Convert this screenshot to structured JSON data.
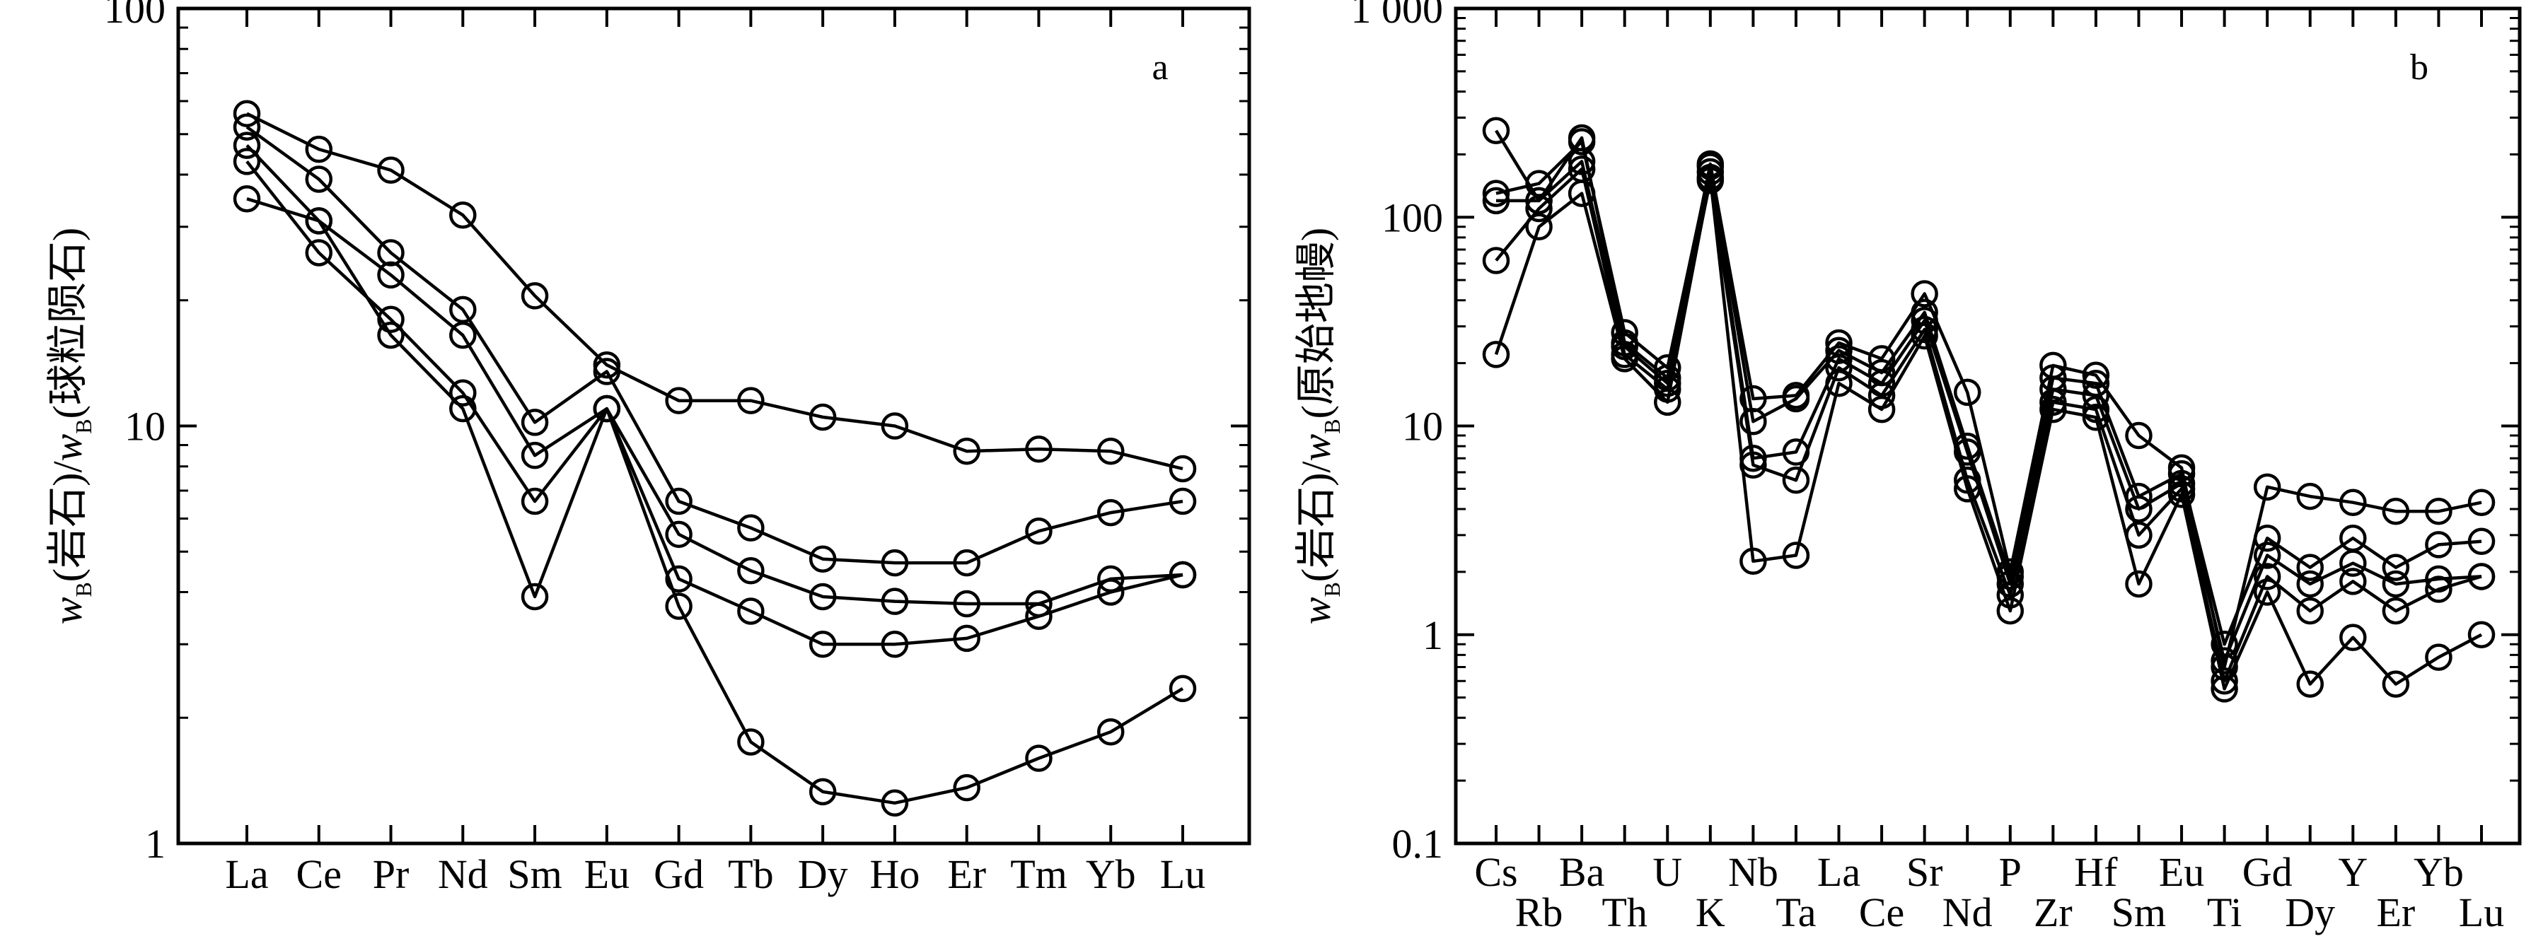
{
  "chart_data": [
    {
      "type": "line",
      "panel_label": "a",
      "yscale": "log",
      "ylim": [
        1,
        100
      ],
      "ytick_labels": [
        "1",
        "10",
        "100"
      ],
      "ylabel": {
        "w1": "w",
        "b1": "B",
        "mid": "(岩石)/",
        "w2": "w",
        "b2": "B",
        "end": "(球粒陨石)"
      },
      "categories": [
        "La",
        "Ce",
        "Pr",
        "Nd",
        "Sm",
        "Eu",
        "Gd",
        "Tb",
        "Dy",
        "Ho",
        "Er",
        "Tm",
        "Yb",
        "Lu"
      ],
      "series": [
        {
          "values": [
            56,
            46,
            41,
            32,
            20.5,
            14,
            11.5,
            11.5,
            10.5,
            10,
            8.7,
            8.8,
            8.7,
            7.9
          ]
        },
        {
          "values": [
            52,
            39,
            26,
            19,
            10.2,
            13.5,
            6.6,
            5.7,
            4.8,
            4.7,
            4.7,
            5.6,
            6.2,
            6.6
          ]
        },
        {
          "values": [
            47,
            31,
            23,
            16.5,
            8.5,
            11,
            5.5,
            4.5,
            3.9,
            3.8,
            3.75,
            3.75,
            4.3,
            4.4
          ]
        },
        {
          "values": [
            43,
            26,
            18,
            12,
            6.6,
            11,
            4.3,
            3.6,
            3.0,
            3.0,
            3.1,
            3.5,
            4.0,
            4.4
          ]
        },
        {
          "values": [
            35,
            31,
            16.5,
            11,
            3.9,
            11,
            3.7,
            1.75,
            1.33,
            1.25,
            1.36,
            1.6,
            1.85,
            2.35
          ]
        }
      ]
    },
    {
      "type": "line",
      "panel_label": "b",
      "yscale": "log",
      "ylim": [
        0.1,
        1000
      ],
      "ytick_labels": [
        "0.1",
        "1",
        "10",
        "100",
        "1 000"
      ],
      "ylabel": {
        "w1": "w",
        "b1": "B",
        "mid": "(岩石)/",
        "w2": "w",
        "b2": "B",
        "end": "(原始地幔)"
      },
      "categories": [
        "Cs",
        "Rb",
        "Ba",
        "Th",
        "U",
        "K",
        "Nb",
        "Ta",
        "La",
        "Ce",
        "Sr",
        "Nd",
        "P",
        "Zr",
        "Hf",
        "Sm",
        "Eu",
        "Ti",
        "Gd",
        "Dy",
        "Y",
        "Er",
        "Yb",
        "Lu"
      ],
      "series": [
        {
          "values": [
            260,
            120,
            240,
            25,
            17,
            180,
            13.5,
            14,
            25,
            21,
            43,
            14.5,
            2.0,
            19.5,
            17.5,
            9,
            6.3,
            0.7,
            5.1,
            4.6,
            4.3,
            3.9,
            3.9,
            4.3
          ]
        },
        {
          "values": [
            130,
            145,
            230,
            28,
            19,
            175,
            10.5,
            13.5,
            23,
            18,
            35,
            8,
            1.9,
            17,
            16,
            4.6,
            5.9,
            0.9,
            2.9,
            2.1,
            2.9,
            2.1,
            2.7,
            2.8
          ]
        },
        {
          "values": [
            120,
            120,
            185,
            24,
            16,
            165,
            7,
            7.5,
            21,
            16,
            32,
            7.5,
            1.75,
            15,
            14,
            4.0,
            5.3,
            0.75,
            2.4,
            1.75,
            2.2,
            1.75,
            1.85,
            1.9
          ]
        },
        {
          "values": [
            62,
            110,
            170,
            22,
            15,
            150,
            6.5,
            5.5,
            19,
            14,
            29,
            5.5,
            1.55,
            13,
            12,
            3.0,
            5.0,
            0.6,
            1.9,
            1.3,
            1.8,
            1.3,
            1.65,
            1.9
          ]
        },
        {
          "values": [
            22,
            90,
            130,
            21,
            13,
            155,
            2.25,
            2.4,
            16,
            12,
            27,
            5,
            1.3,
            12,
            11,
            1.75,
            4.7,
            0.55,
            1.6,
            0.58,
            0.97,
            0.58,
            0.78,
            1.0
          ]
        }
      ]
    }
  ]
}
